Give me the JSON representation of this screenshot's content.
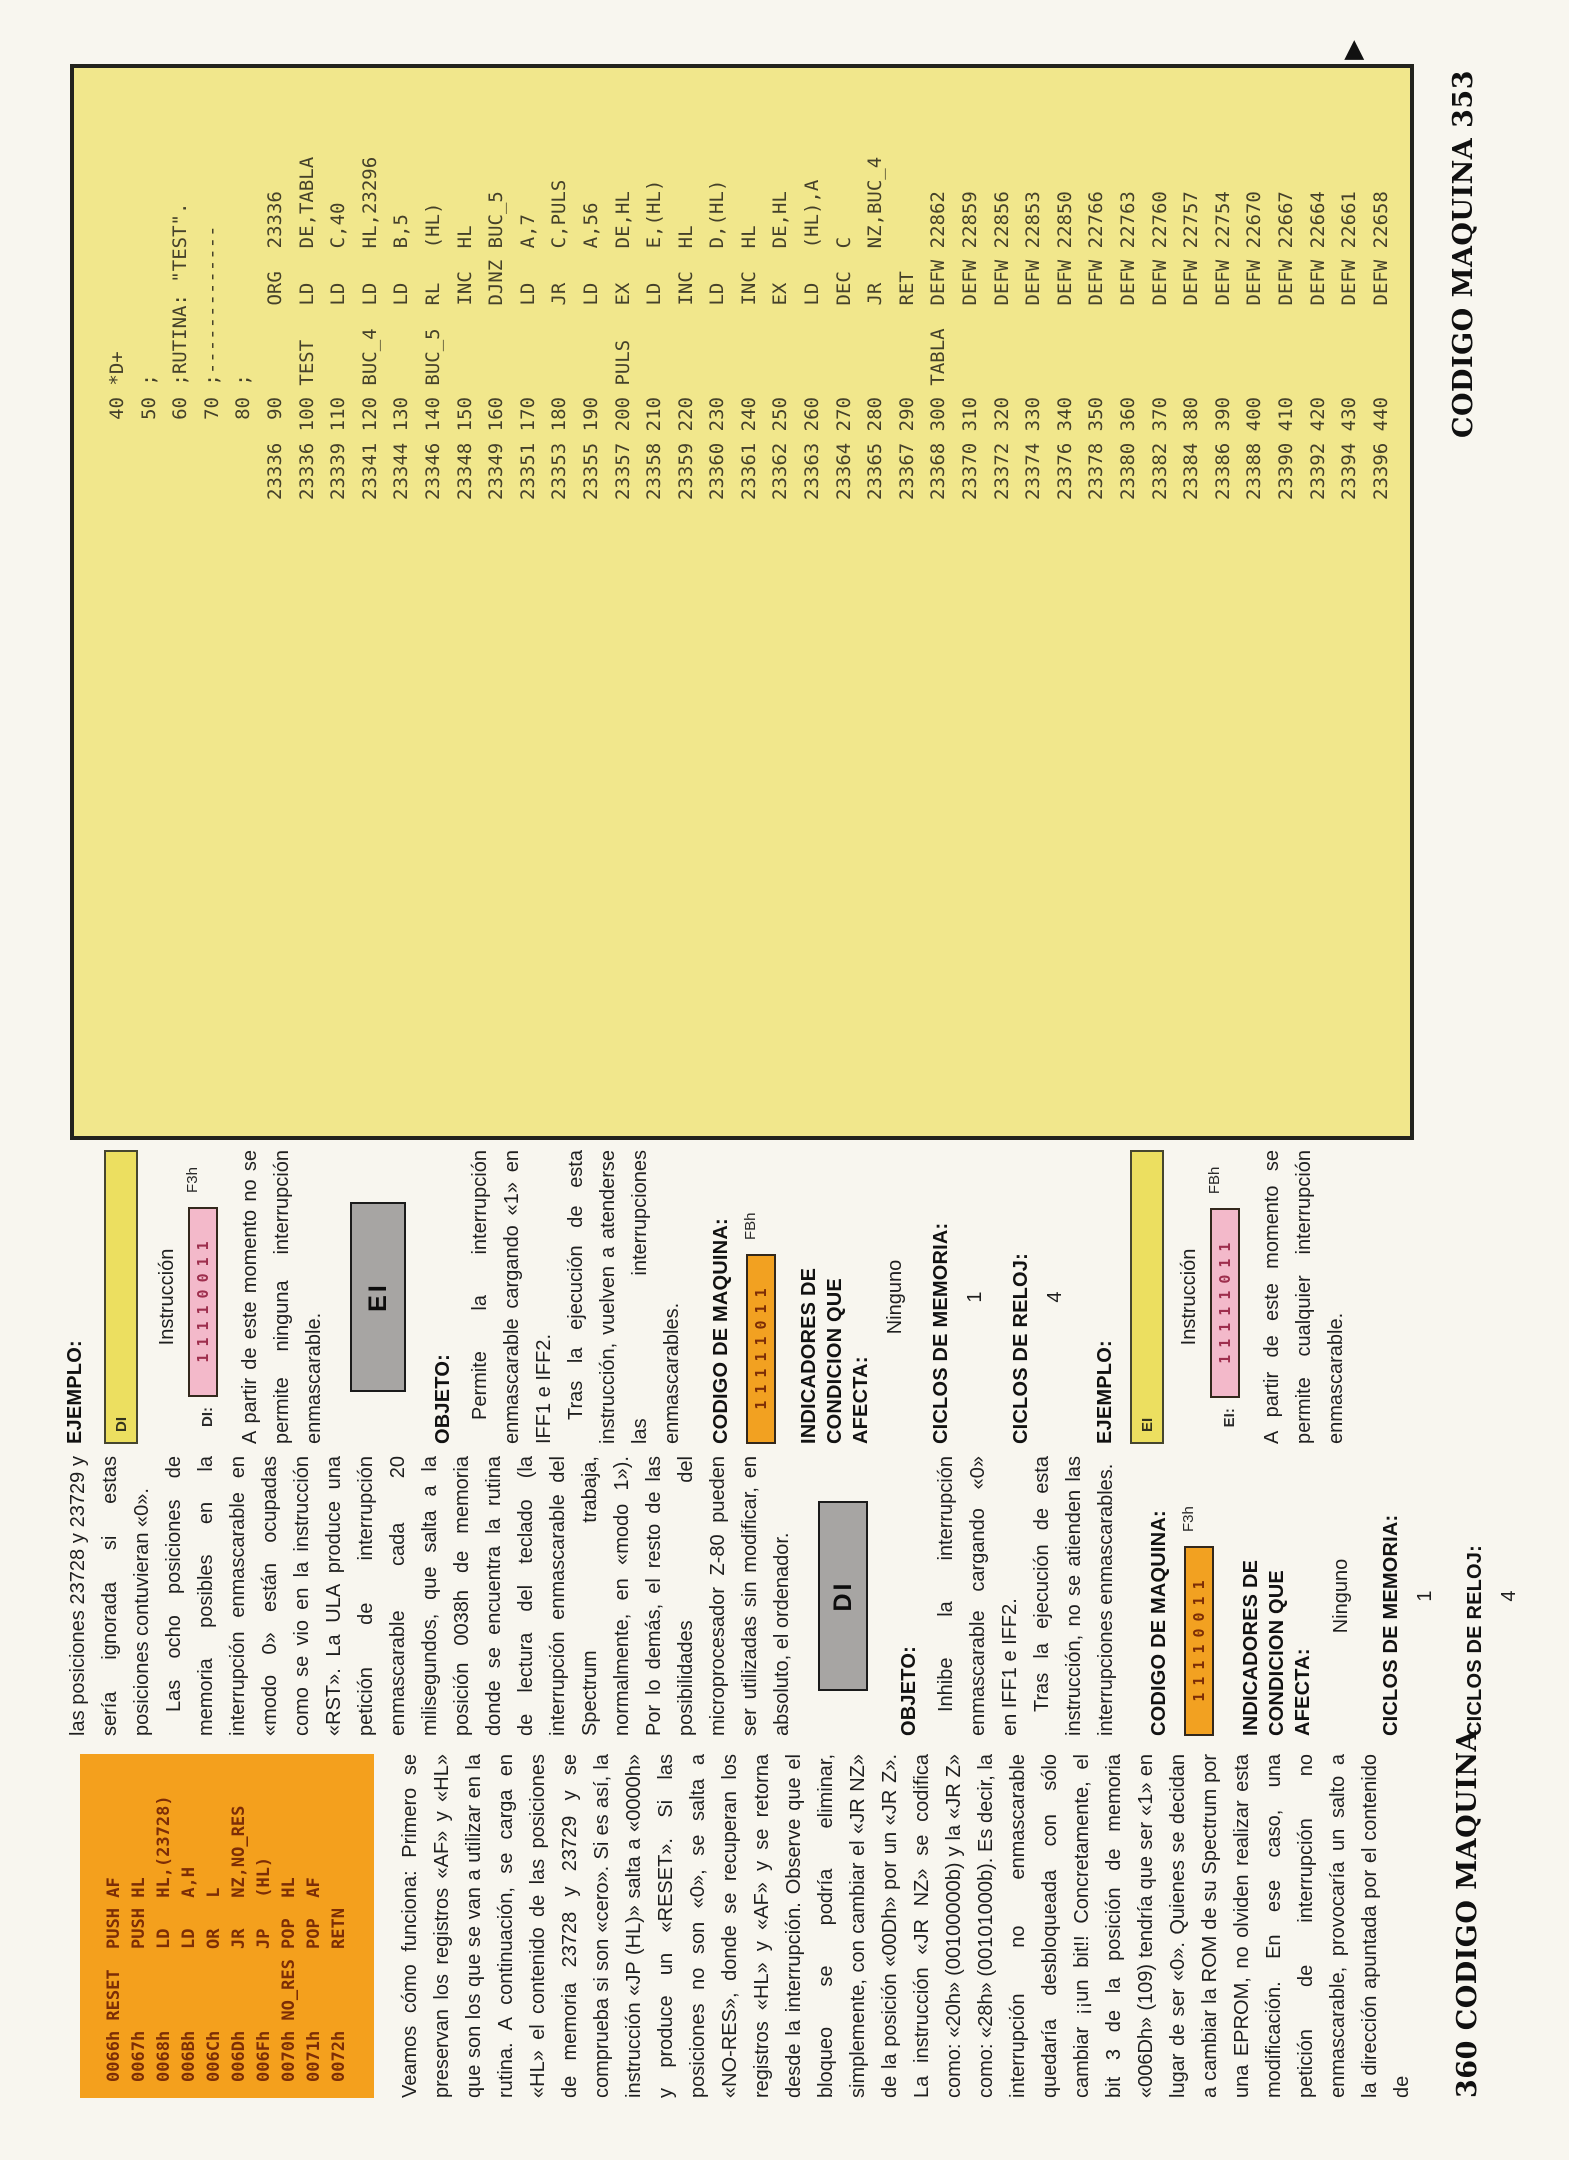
{
  "colors": {
    "listing_box_bg": "#f1e78c",
    "code_box_bg": "#f4a01d",
    "code_box_text": "#7c2d06",
    "example_box_bg": "#ecdf60",
    "pink_box_bg": "#f3b9ca",
    "pink_box_text": "#9d2e4d",
    "gray_box_bg": "#a7a5a3",
    "border_dark": "#23231d"
  },
  "left_page": {
    "footer": "360 CODIGO MAQUINA",
    "reset_code_lines": [
      "0066h RESET  PUSH AF",
      "0067h        PUSH HL",
      "0068h        LD   HL,(23728)",
      "006Bh        LD   A,H",
      "006Ch        OR   L",
      "006Dh        JR   NZ,NO_RES",
      "006Fh        JP   (HL)",
      "0070h NO_RES POP  HL",
      "0071h        POP  AF",
      "0072h        RETN"
    ],
    "col1_paragraph": "Veamos cómo funciona: Primero se preservan los registros «AF» y «HL» que son los que se van a utilizar en la rutina. A continuación, se carga en «HL» el contenido de las posiciones de memoria 23728 y 23729 y se comprueba si son «cero». Si es así, la instrucción «JP (HL)» salta a «0000h» y produce un «RESET». Si las posiciones no son «0», se salta a «NO-RES», donde se recuperan los registros «HL» y «AF» y se retorna desde la interrupción. Observe que el bloqueo se podría eliminar, simplemente, con cambiar el «JR NZ» de la posición «00Dh» por un «JR Z». La instrucción «JR NZ» se codifica como: «20h» (00100000b) y la «JR Z» como: «28h» (00101000b). Es decir, la interrupción no enmascarable quedaría desbloqueada con sólo cambiar ¡¡un bit!! Concretamente, el bit 3 de la posición de memoria «006Dh» (109) tendría que ser «1» en lugar de ser «0». Quienes se decidan a cambiar la ROM de su Spectrum por una EPROM, no olviden realizar esta modificación. En ese caso, una petición de interrupción no enmascarable, provocaría un salto a la dirección apuntada por el contenido de",
    "col2_para1": "las posiciones 23728 y 23729 y sería ignorada si estas posiciones contuvieran «0».",
    "col2_para2": "Las ocho posiciones de memoria posibles en la interrupción enmascarable en «modo 0» están ocupadas como se vio en la instrucción «RST». La ULA produce una petición de interrupción enmascarable cada 20 milisegundos, que salta a la posición 0038h de memoria donde se encuentra la rutina de lectura del teclado (la interrupción enmascarable del Spectrum trabaja, normalmente, en «modo 1»). Por lo demás, el resto de las posibilidades del microprocesador Z-80 pueden ser utilizadas sin modificar, en absoluto, el ordenador.",
    "di": {
      "mnemonic": "DI",
      "objeto_label": "OBJETO:",
      "objeto_p1": "Inhibe la interrupción enmascarable cargando «0» en IFF1 e IFF2.",
      "objeto_p2": "Tras la ejecución de esta instrucción, no se atienden las interrupciones enmascarables.",
      "codigo_label": "CODIGO DE MAQUINA:",
      "binary": "11110011",
      "hex": "F3h",
      "flags_label": "INDICADORES DE CONDICION QUE AFECTA:",
      "flags_value": "Ninguno",
      "mem_label": "CICLOS DE MEMORIA:",
      "mem_value": "1",
      "clk_label": "CICLOS DE RELOJ:",
      "clk_value": "4"
    },
    "ei": {
      "mnemonic": "EI",
      "objeto_label": "OBJETO:",
      "objeto_p1": "Permite la interrupción enmascarable cargando «1» en IFF1 e IFF2.",
      "objeto_p2": "Tras la ejecución de esta instrucción, vuelven a atenderse las interrupciones enmascarables.",
      "codigo_label": "CODIGO DE MAQUINA:",
      "binary": "11111011",
      "hex": "FBh",
      "flags_label": "INDICADORES DE CONDICION QUE AFECTA:",
      "flags_value": "Ninguno",
      "mem_label": "CICLOS DE MEMORIA:",
      "mem_value": "1",
      "clk_label": "CICLOS DE RELOJ:",
      "clk_value": "4"
    },
    "ejemplo_di": {
      "label": "EJEMPLO:",
      "box_text": "DI",
      "instruccion_label": "Instrucción",
      "prefix": "DI:",
      "binary": "11110011",
      "hex": "F3h",
      "note": "A partir de este momento no se permite ninguna interrupción enmascarable."
    },
    "ejemplo_ei": {
      "label": "EJEMPLO:",
      "box_text": "EI",
      "instruccion_label": "Instrucción",
      "prefix": "EI:",
      "binary": "11111011",
      "hex": "FBh",
      "note": "A partir de este momento se permite cualquier interrupción enmascarable."
    }
  },
  "right_page": {
    "footer": "CODIGO MAQUINA 353",
    "continues_marker": "▶",
    "listing_rows": [
      "       40 *D+",
      "       50 ;",
      "       60 ;RUTINA: \"TEST\".",
      "       70 ;-------------",
      "       80 ;",
      "23336  90        ORG  23336",
      "23336 100 TEST   LD   DE,TABLA",
      "23339 110        LD   C,40",
      "23341 120 BUC_4  LD   HL,23296",
      "23344 130        LD   B,5",
      "23346 140 BUC_5  RL   (HL)",
      "23348 150        INC  HL",
      "23349 160        DJNZ BUC_5",
      "23351 170        LD   A,7",
      "23353 180        JR   C,PULS",
      "23355 190        LD   A,56",
      "23357 200 PULS   EX   DE,HL",
      "23358 210        LD   E,(HL)",
      "23359 220        INC  HL",
      "23360 230        LD   D,(HL)",
      "23361 240        INC  HL",
      "23362 250        EX   DE,HL",
      "23363 260        LD   (HL),A",
      "23364 270        DEC  C",
      "23365 280        JR   NZ,BUC_4",
      "23367 290        RET",
      "23368 300 TABLA  DEFW 22862",
      "23370 310        DEFW 22859",
      "23372 320        DEFW 22856",
      "23374 330        DEFW 22853",
      "23376 340        DEFW 22850",
      "23378 350        DEFW 22766",
      "23380 360        DEFW 22763",
      "23382 370        DEFW 22760",
      "23384 380        DEFW 22757",
      "23386 390        DEFW 22754",
      "23388 400        DEFW 22670",
      "23390 410        DEFW 22667",
      "23392 420        DEFW 22664",
      "23394 430        DEFW 22661",
      "23396 440        DEFW 22658"
    ]
  }
}
